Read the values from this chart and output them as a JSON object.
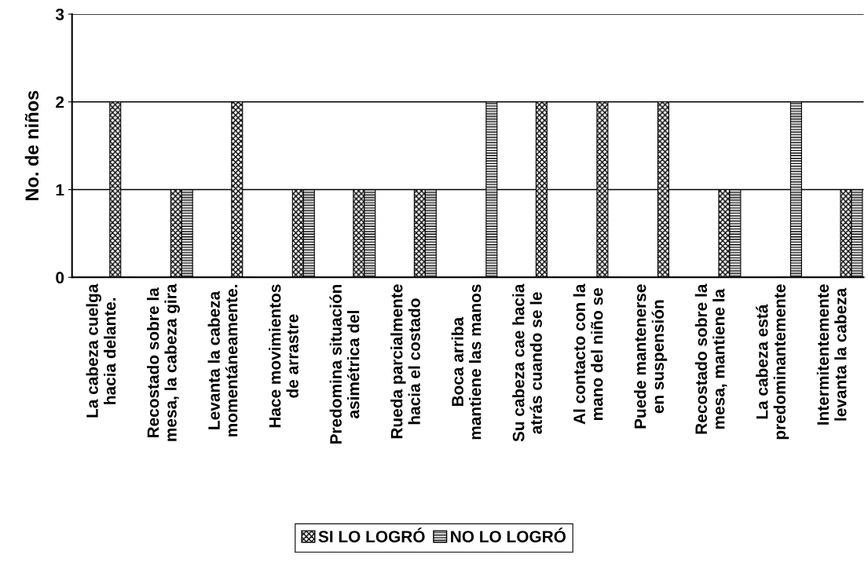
{
  "chart_data": {
    "type": "bar",
    "ylabel": "No. de niños",
    "categories": [
      "La cabeza cuelga\nhacia delante.",
      "Recostado sobre la\nmesa, la cabeza gira",
      "Levanta la cabeza\nmomentáneamente.",
      "Hace movimientos\nde arrastre",
      "Predomina situación\nasimétrica del",
      "Rueda parcialmente\nhacia el costado",
      "Boca arriba\nmantiene las manos",
      "Su cabeza cae hacia\natrás cuando se le",
      "Al contacto con la\nmano del niño se",
      "Puede mantenerse\nen suspensión",
      "Recostado sobre la\nmesa, mantiene la",
      "La cabeza está\npredominantemente",
      "Intermitentemente\nlevanta la cabeza"
    ],
    "series": [
      {
        "name": "SI LO LOGRÓ",
        "color": "#000000",
        "values": [
          2,
          1,
          2,
          1,
          1,
          1,
          0,
          2,
          2,
          2,
          1,
          0,
          1
        ]
      },
      {
        "name": "NO LO LOGRÓ",
        "color": "#000000",
        "values": [
          0,
          1,
          0,
          1,
          1,
          1,
          2,
          0,
          0,
          0,
          1,
          2,
          1
        ]
      }
    ],
    "ylim": [
      0,
      3
    ],
    "yticks": [
      0,
      1,
      2,
      3
    ],
    "grid": "y",
    "legend": "bottom"
  }
}
